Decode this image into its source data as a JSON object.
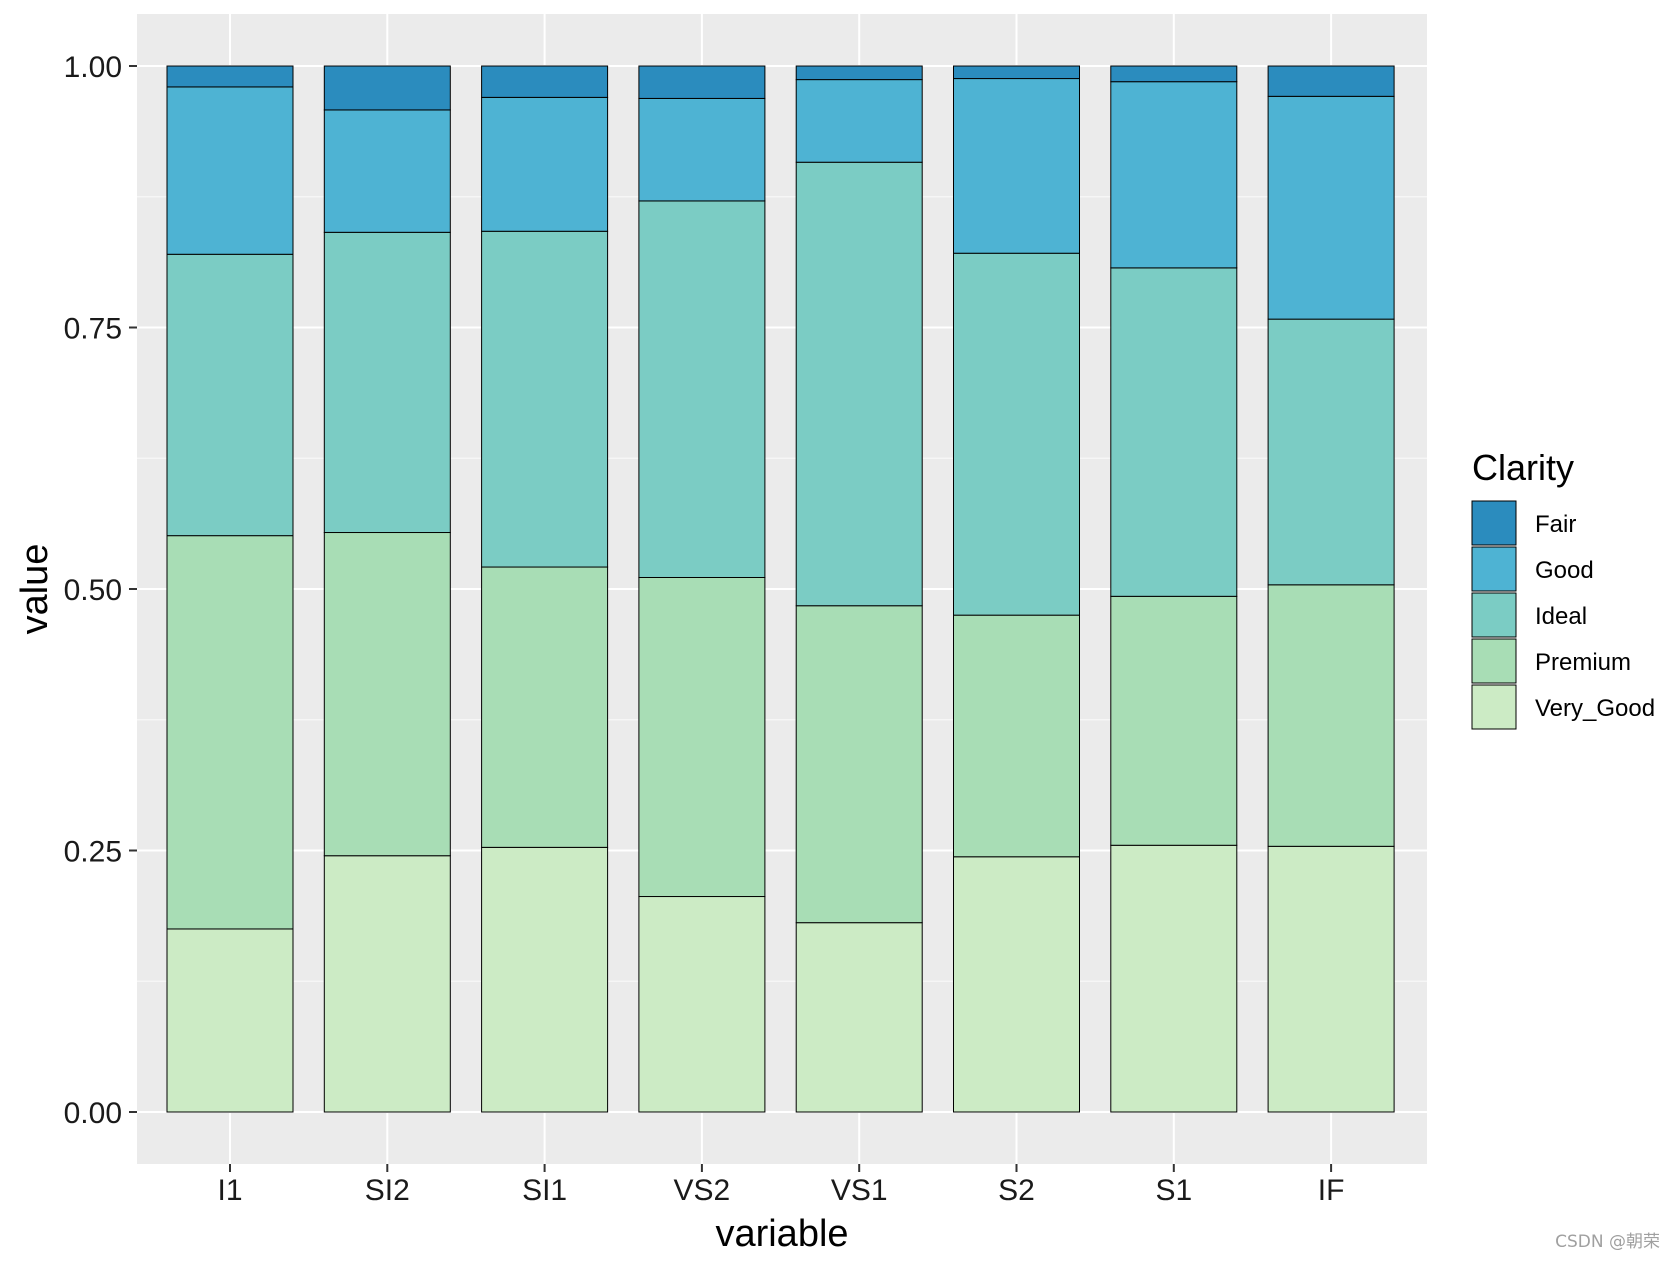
{
  "chart_data": {
    "type": "bar",
    "stacked": true,
    "xlabel": "variable",
    "ylabel": "value",
    "ylim": [
      0,
      1
    ],
    "yticks": [
      "0.00",
      "0.25",
      "0.50",
      "0.75",
      "1.00"
    ],
    "categories": [
      "I1",
      "SI2",
      "SI1",
      "VS2",
      "VS1",
      "S2",
      "S1",
      "IF"
    ],
    "series": [
      {
        "name": "Very_Good",
        "color": "#ccebc5",
        "values": [
          0.175,
          0.245,
          0.253,
          0.206,
          0.181,
          0.244,
          0.255,
          0.254
        ]
      },
      {
        "name": "Premium",
        "color": "#a8ddb5",
        "values": [
          0.376,
          0.309,
          0.268,
          0.305,
          0.303,
          0.231,
          0.238,
          0.25
        ]
      },
      {
        "name": "Ideal",
        "color": "#7bccc4",
        "values": [
          0.269,
          0.287,
          0.321,
          0.36,
          0.424,
          0.346,
          0.314,
          0.254
        ]
      },
      {
        "name": "Good",
        "color": "#4eb3d3",
        "values": [
          0.16,
          0.117,
          0.128,
          0.098,
          0.079,
          0.167,
          0.178,
          0.213
        ]
      },
      {
        "name": "Fair",
        "color": "#2b8cbe",
        "values": [
          0.02,
          0.042,
          0.03,
          0.031,
          0.013,
          0.012,
          0.015,
          0.029
        ]
      }
    ],
    "legend": {
      "title": "Clarity",
      "position": "right",
      "entries": [
        "Fair",
        "Good",
        "Ideal",
        "Premium",
        "Very_Good"
      ]
    },
    "grid": true
  },
  "watermark": "CSDN @朝荣"
}
